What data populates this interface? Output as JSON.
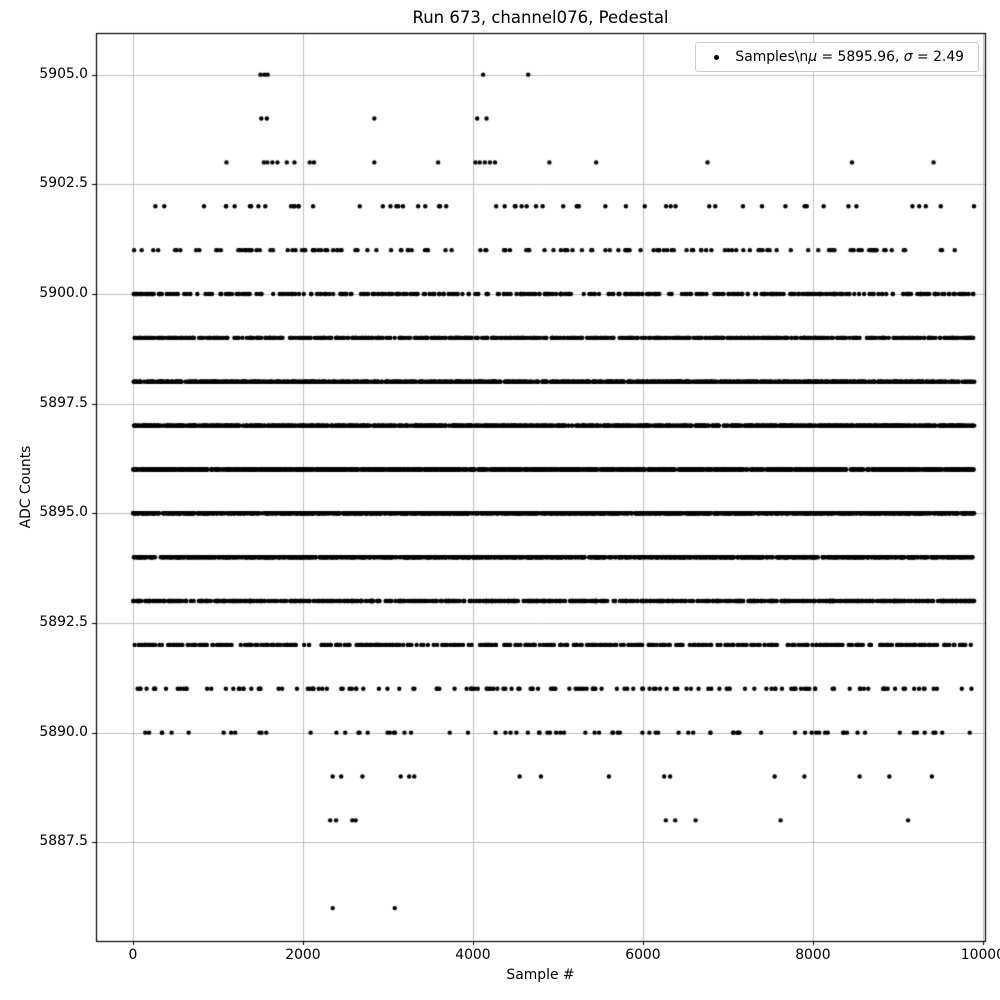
{
  "figure": {
    "title": "Run 673, channel076, Pedestal",
    "xlabel": "Sample #",
    "ylabel": "ADC Counts"
  },
  "legend": {
    "parts": [
      "Samples\\n",
      "μ",
      " = 5895.96, ",
      "σ",
      " = 2.49"
    ],
    "marker": "black-dot",
    "marker_color": "#000000"
  },
  "chart_data": {
    "type": "scatter",
    "title": "Run 673, channel076, Pedestal",
    "xlabel": "Sample #",
    "ylabel": "ADC Counts",
    "legend_label": "Samples\\nμ = 5895.96, σ = 2.49",
    "legend_position": "upper right",
    "grid": true,
    "marker": {
      "type": "dot",
      "color": "#000000",
      "radius": 2.2
    },
    "stats": {
      "mu": 5895.96,
      "sigma": 2.49
    },
    "xlim": [
      -435,
      10025
    ],
    "ylim": [
      5885.25,
      5905.95
    ],
    "x_range": [
      0,
      9900
    ],
    "xticks": [
      0,
      2000,
      4000,
      6000,
      8000,
      10000
    ],
    "xticklabels": [
      "0",
      "2000",
      "4000",
      "6000",
      "8000",
      "10000"
    ],
    "yticks": [
      5887.5,
      5890.0,
      5892.5,
      5895.0,
      5897.5,
      5900.0,
      5902.5,
      5905.0
    ],
    "yticklabels": [
      "5887.5",
      "5890.0",
      "5892.5",
      "5895.0",
      "5897.5",
      "5900.0",
      "5902.5",
      "5905.0"
    ],
    "levels": [
      {
        "y": 5905,
        "x": [
          1500,
          1545,
          1585,
          4120,
          4650
        ]
      },
      {
        "y": 5904,
        "x": [
          1510,
          1575,
          2840,
          4050,
          4160
        ]
      },
      {
        "y": 5903,
        "x": [
          1100,
          1540,
          1580,
          1640,
          1700,
          1810,
          1900,
          2080,
          2130,
          2840,
          3590,
          4030,
          4080,
          4140,
          4200,
          4260,
          4900,
          5450,
          6760,
          8460,
          9420
        ]
      },
      {
        "y": 5902,
        "count": 60
      },
      {
        "y": 5901,
        "count": 150
      },
      {
        "y": 5900,
        "count": 380
      },
      {
        "y": 5899,
        "count": 720
      },
      {
        "y": 5898,
        "count": 1100
      },
      {
        "y": 5897,
        "count": 1400
      },
      {
        "y": 5896,
        "count": 1550
      },
      {
        "y": 5895,
        "count": 1450
      },
      {
        "y": 5894,
        "count": 1150
      },
      {
        "y": 5893,
        "count": 780
      },
      {
        "y": 5892,
        "count": 450
      },
      {
        "y": 5891,
        "count": 150
      },
      {
        "y": 5890,
        "count": 80
      },
      {
        "y": 5889,
        "x": [
          2350,
          2450,
          2700,
          3150,
          3250,
          3310,
          4550,
          4800,
          5600,
          6250,
          6320,
          7550,
          7900,
          8550,
          8900,
          9400
        ]
      },
      {
        "y": 5888,
        "x": [
          2320,
          2390,
          2580,
          2620,
          6270,
          6380,
          6620,
          7620,
          9120
        ]
      },
      {
        "y": 5886,
        "x": [
          2350,
          3080
        ]
      }
    ]
  }
}
